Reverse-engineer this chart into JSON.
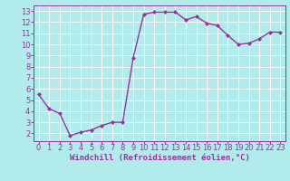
{
  "x": [
    0,
    1,
    2,
    3,
    4,
    5,
    6,
    7,
    8,
    9,
    10,
    11,
    12,
    13,
    14,
    15,
    16,
    17,
    18,
    19,
    20,
    21,
    22,
    23
  ],
  "y": [
    5.5,
    4.2,
    3.8,
    1.8,
    2.1,
    2.3,
    2.7,
    3.0,
    3.0,
    8.8,
    12.7,
    12.9,
    12.9,
    12.9,
    12.2,
    12.5,
    11.9,
    11.7,
    10.8,
    10.0,
    10.1,
    10.5,
    11.1,
    11.1
  ],
  "line_color": "#993399",
  "marker": "D",
  "marker_size": 2.0,
  "bg_color": "#b2ebeb",
  "grid_color": "#ffffff",
  "xlabel": "Windchill (Refroidissement éolien,°C)",
  "ylabel": "",
  "xlim": [
    -0.5,
    23.5
  ],
  "ylim": [
    1.3,
    13.5
  ],
  "yticks": [
    2,
    3,
    4,
    5,
    6,
    7,
    8,
    9,
    10,
    11,
    12,
    13
  ],
  "xticks": [
    0,
    1,
    2,
    3,
    4,
    5,
    6,
    7,
    8,
    9,
    10,
    11,
    12,
    13,
    14,
    15,
    16,
    17,
    18,
    19,
    20,
    21,
    22,
    23
  ],
  "tick_color": "#993399",
  "tick_label_color": "#993399",
  "xlabel_color": "#993399",
  "xlabel_fontsize": 6.5,
  "tick_fontsize": 6.0,
  "line_width": 1.0
}
